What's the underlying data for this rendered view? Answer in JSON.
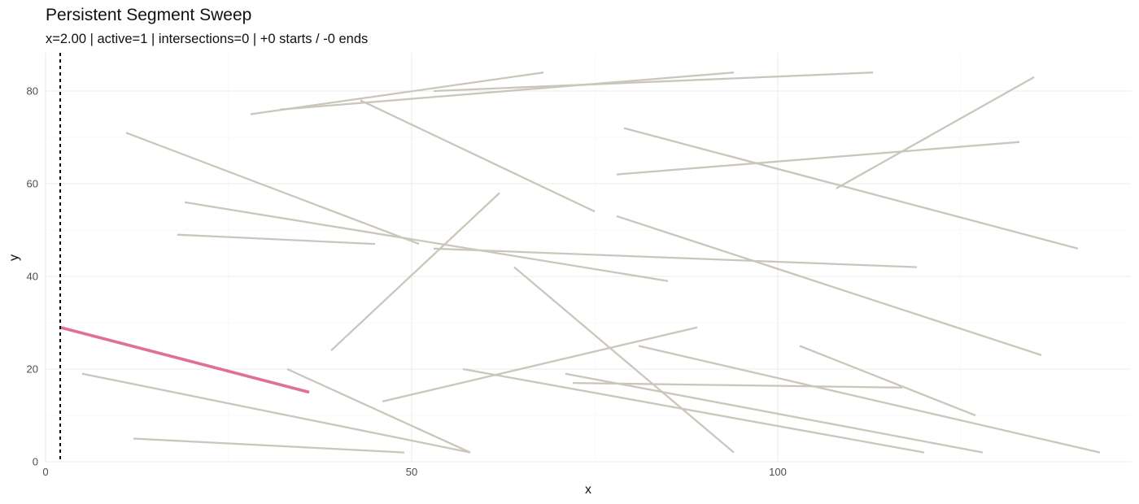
{
  "chart_data": {
    "type": "line",
    "title": "Persistent Segment Sweep",
    "subtitle": "x=2.00 | active=1 | intersections=0 | +0 starts / -0 ends",
    "xlabel": "x",
    "ylabel": "y",
    "xlim": [
      0,
      148
    ],
    "ylim": [
      0,
      88
    ],
    "x_ticks": [
      0,
      50,
      100
    ],
    "y_ticks": [
      0,
      20,
      40,
      60,
      80
    ],
    "grid": true,
    "legend": "none",
    "sweep_line": {
      "x": 2,
      "style": "dashed",
      "color": "#000000"
    },
    "colors": {
      "inactive": "#cbc6bb",
      "active": "#e07090",
      "grid": "#ebebeb"
    },
    "series": [
      {
        "x": [
          2,
          36
        ],
        "y": [
          29,
          15
        ],
        "state": "active"
      },
      {
        "x": [
          5,
          58
        ],
        "y": [
          19,
          2
        ],
        "state": "inactive"
      },
      {
        "x": [
          12,
          49
        ],
        "y": [
          5,
          2
        ],
        "state": "inactive"
      },
      {
        "x": [
          33,
          58
        ],
        "y": [
          20,
          2
        ],
        "state": "inactive"
      },
      {
        "x": [
          11,
          51
        ],
        "y": [
          71,
          47
        ],
        "state": "inactive"
      },
      {
        "x": [
          19,
          85
        ],
        "y": [
          56,
          39
        ],
        "state": "inactive"
      },
      {
        "x": [
          18,
          45
        ],
        "y": [
          49,
          47
        ],
        "state": "inactive"
      },
      {
        "x": [
          28,
          68
        ],
        "y": [
          75,
          84
        ],
        "state": "inactive"
      },
      {
        "x": [
          32,
          94
        ],
        "y": [
          76,
          84
        ],
        "state": "inactive"
      },
      {
        "x": [
          53,
          113
        ],
        "y": [
          80,
          84
        ],
        "state": "inactive"
      },
      {
        "x": [
          43,
          75
        ],
        "y": [
          78,
          54
        ],
        "state": "inactive"
      },
      {
        "x": [
          39,
          62
        ],
        "y": [
          24,
          58
        ],
        "state": "inactive"
      },
      {
        "x": [
          53,
          119
        ],
        "y": [
          46,
          42
        ],
        "state": "inactive"
      },
      {
        "x": [
          64,
          94
        ],
        "y": [
          42,
          2
        ],
        "state": "inactive"
      },
      {
        "x": [
          46,
          89
        ],
        "y": [
          13,
          29
        ],
        "state": "inactive"
      },
      {
        "x": [
          57,
          120
        ],
        "y": [
          20,
          2
        ],
        "state": "inactive"
      },
      {
        "x": [
          71,
          128
        ],
        "y": [
          19,
          2
        ],
        "state": "inactive"
      },
      {
        "x": [
          72,
          117
        ],
        "y": [
          17,
          16
        ],
        "state": "inactive"
      },
      {
        "x": [
          81,
          144
        ],
        "y": [
          25,
          2
        ],
        "state": "inactive"
      },
      {
        "x": [
          103,
          127
        ],
        "y": [
          25,
          10
        ],
        "state": "inactive"
      },
      {
        "x": [
          78,
          136
        ],
        "y": [
          53,
          23
        ],
        "state": "inactive"
      },
      {
        "x": [
          78,
          133
        ],
        "y": [
          62,
          69
        ],
        "state": "inactive"
      },
      {
        "x": [
          79,
          141
        ],
        "y": [
          72,
          46
        ],
        "state": "inactive"
      },
      {
        "x": [
          108,
          135
        ],
        "y": [
          59,
          83
        ],
        "state": "inactive"
      }
    ]
  }
}
